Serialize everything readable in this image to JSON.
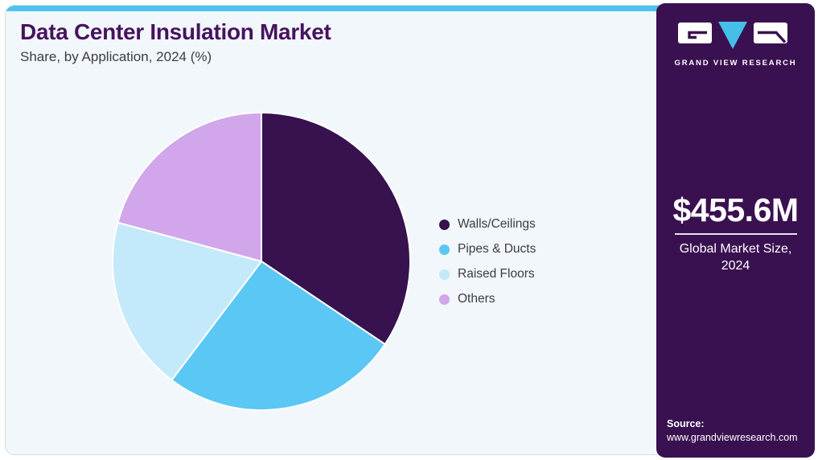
{
  "header": {
    "title": "Data Center Insulation Market",
    "subtitle": "Share, by Application, 2024 (%)"
  },
  "chart_data": {
    "type": "pie",
    "title": "Data Center Insulation Market Share, by Application, 2024 (%)",
    "categories": [
      "Walls/Ceilings",
      "Pipes & Ducts",
      "Raised Floors",
      "Others"
    ],
    "values": [
      34.4,
      25.9,
      18.9,
      20.8
    ],
    "unit": "%",
    "colors": [
      "#38114F",
      "#5BC7F4",
      "#C3E9FA",
      "#D1A6EA"
    ],
    "legend_position": "right",
    "start_angle_deg": 0,
    "direction": "clockwise",
    "slice_border_color": "#ffffff"
  },
  "sidebar": {
    "brand_name": "GRAND VIEW RESEARCH",
    "market_size_value": "$455.6M",
    "market_size_caption_line1": "Global Market Size,",
    "market_size_caption_line2": "2024",
    "source_label": "Source:",
    "source_url": "www.grandviewresearch.com"
  },
  "colors": {
    "accent_strip_blue": "#4EC3F0",
    "sidebar_purple": "#3A1150",
    "title_purple": "#48125F",
    "logo_triangle_blue": "#45BEE8",
    "card_background": "#F1F7FA"
  }
}
